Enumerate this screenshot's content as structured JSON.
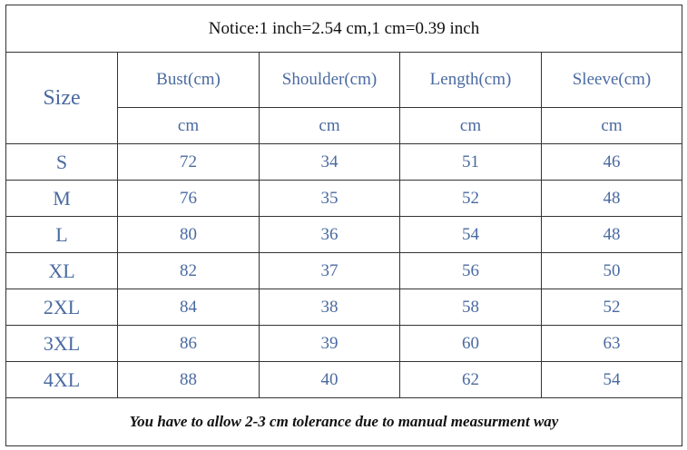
{
  "notice": "Notice:1 inch=2.54 cm,1 cm=0.39 inch",
  "size_label": "Size",
  "columns": [
    "Bust(cm)",
    "Shoulder(cm)",
    "Length(cm)",
    "Sleeve(cm)"
  ],
  "units": [
    "cm",
    "cm",
    "cm",
    "cm"
  ],
  "rows": [
    [
      "S",
      72,
      34,
      51,
      46
    ],
    [
      "M",
      76,
      35,
      52,
      48
    ],
    [
      "L",
      80,
      36,
      54,
      48
    ],
    [
      "XL",
      82,
      37,
      56,
      50
    ],
    [
      "2XL",
      84,
      38,
      58,
      52
    ],
    [
      "3XL",
      86,
      39,
      60,
      63
    ],
    [
      "4XL",
      88,
      40,
      62,
      54
    ]
  ],
  "footer": "You have to allow 2-3 cm tolerance due to manual measurment way"
}
